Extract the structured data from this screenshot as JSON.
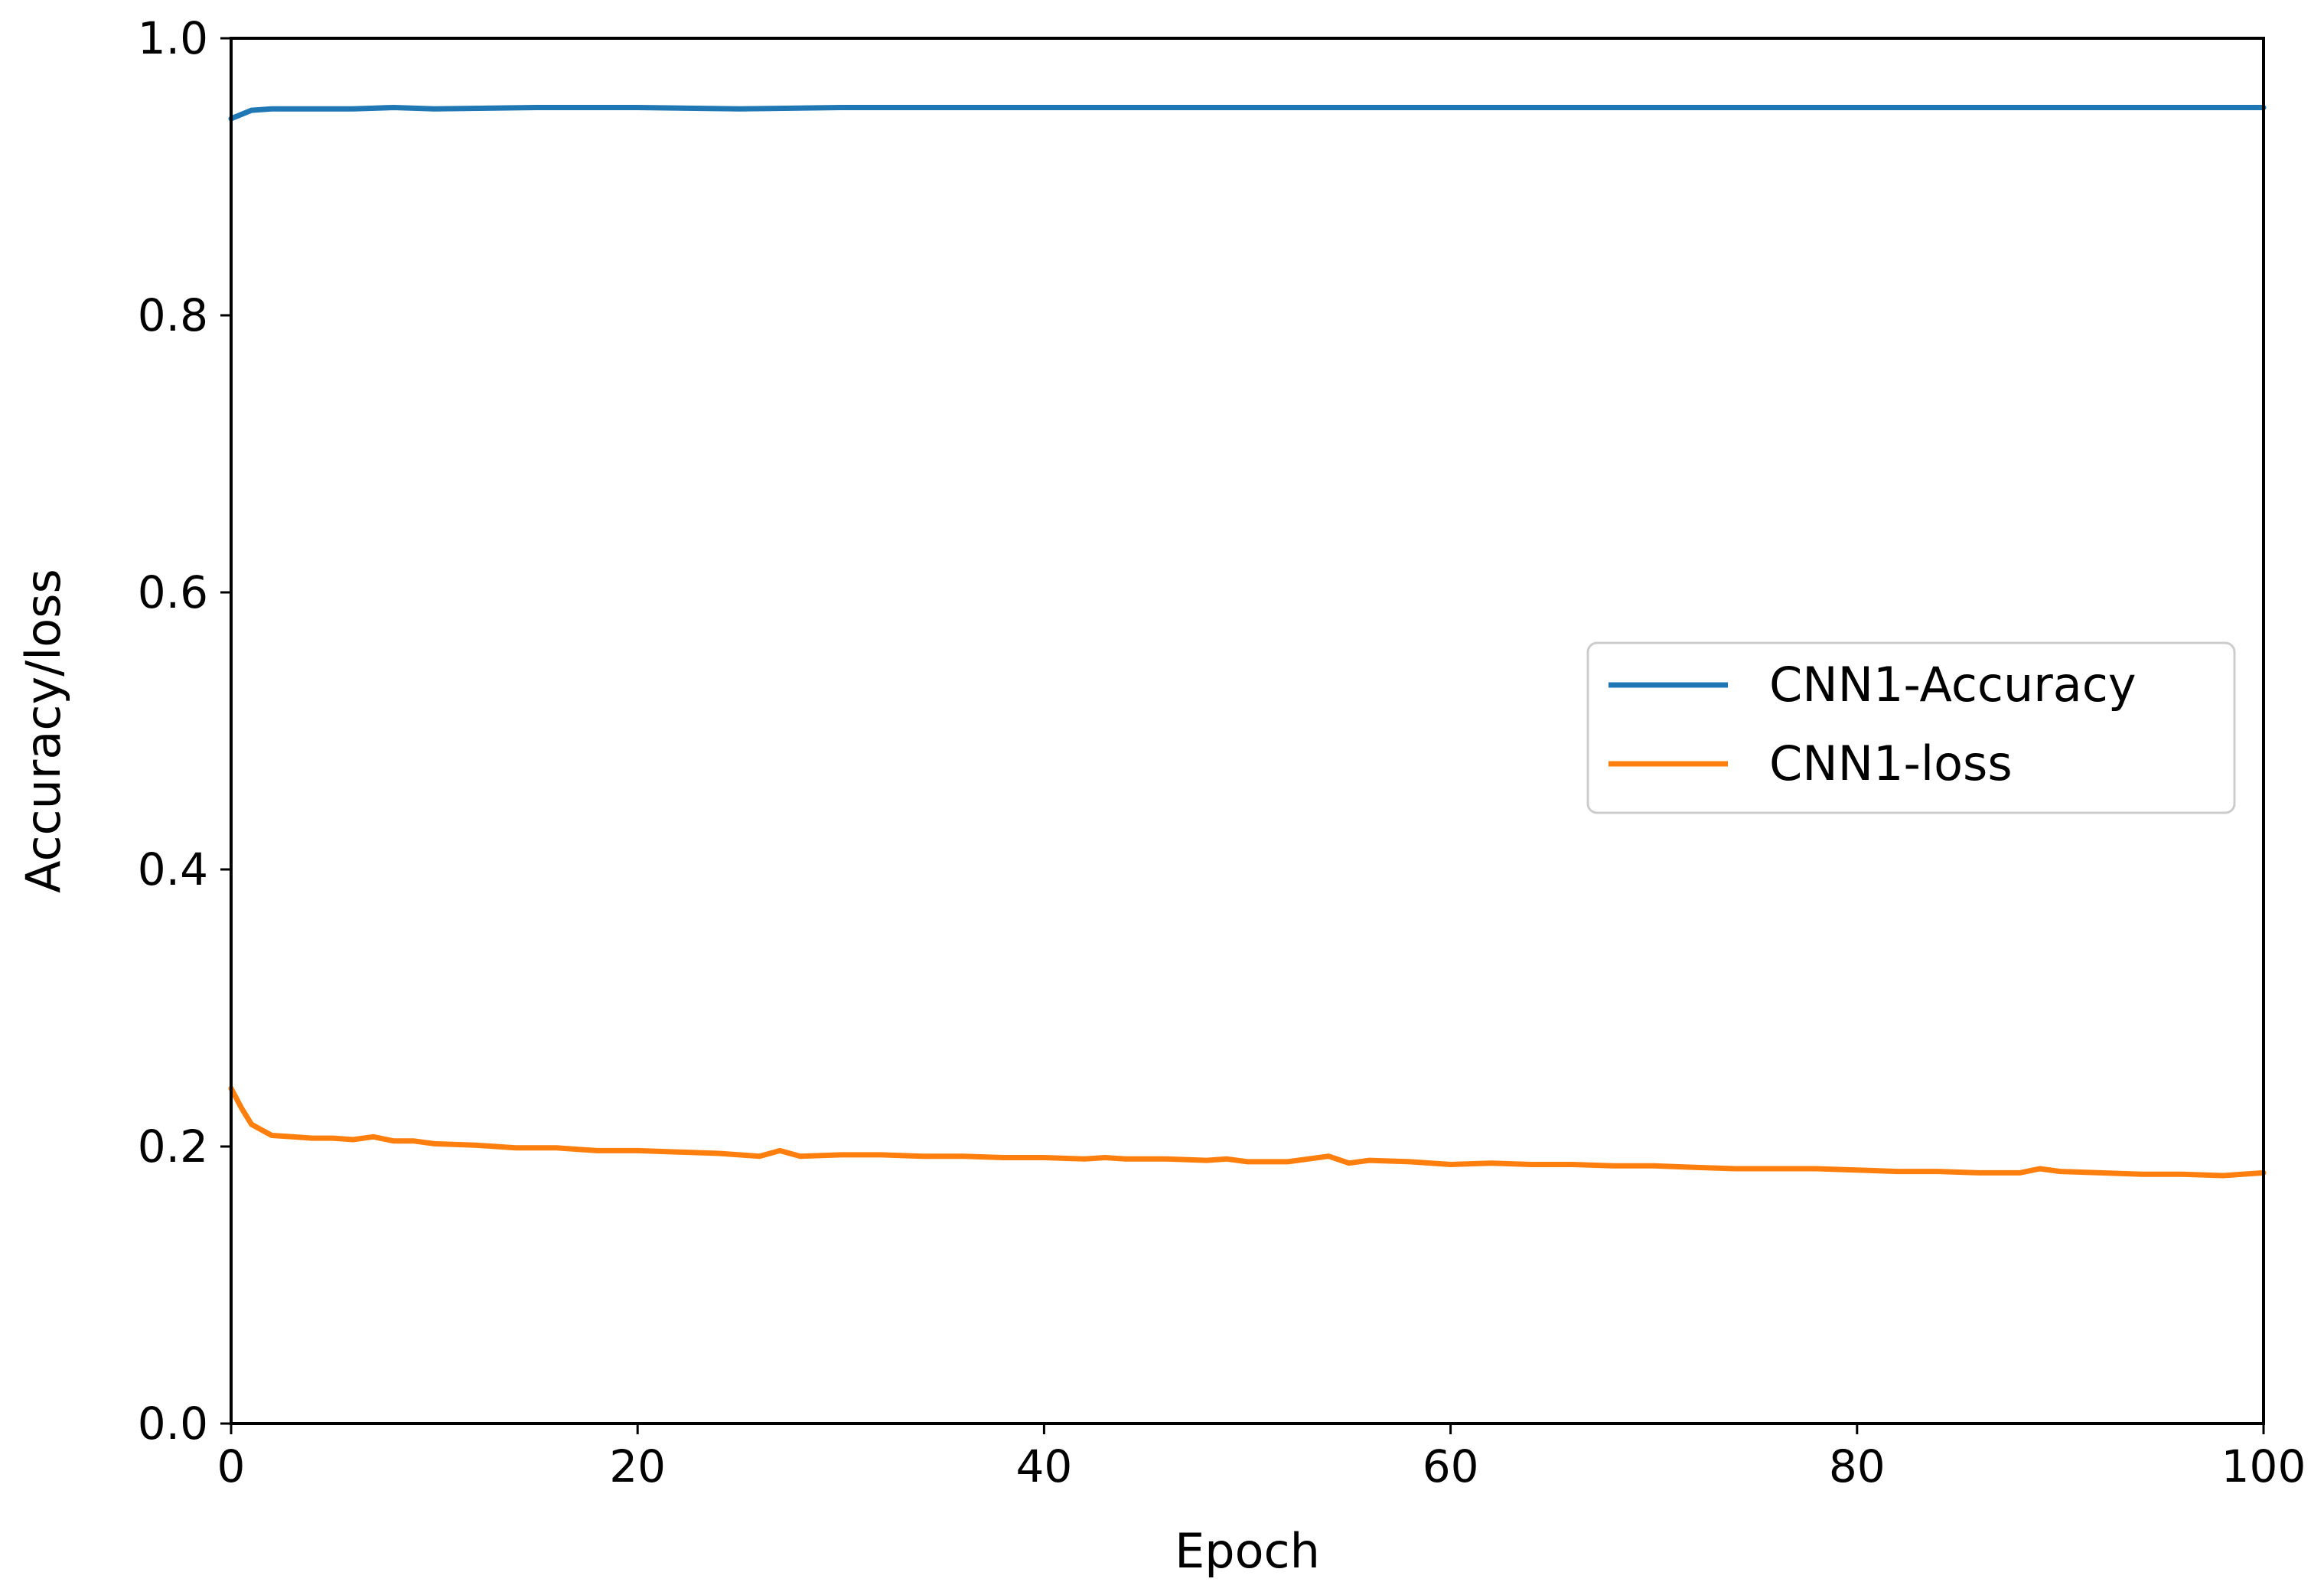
{
  "chart_data": {
    "type": "line",
    "title": "",
    "xlabel": "Epoch",
    "ylabel": "Accuracy/loss",
    "xlim": [
      0,
      100
    ],
    "ylim": [
      0.0,
      1.0
    ],
    "xticks": [
      "0",
      "20",
      "40",
      "60",
      "80",
      "100"
    ],
    "yticks": [
      "0.0",
      "0.2",
      "0.4",
      "0.6",
      "0.8",
      "1.0"
    ],
    "grid": false,
    "legend_position": "center-right",
    "series": [
      {
        "name": "CNN1-Accuracy",
        "color": "#1f77b4",
        "x": [
          0,
          1,
          2,
          4,
          6,
          8,
          10,
          15,
          20,
          25,
          30,
          35,
          40,
          45,
          50,
          55,
          60,
          65,
          70,
          75,
          80,
          85,
          90,
          95,
          100
        ],
        "y": [
          0.942,
          0.948,
          0.949,
          0.949,
          0.949,
          0.95,
          0.949,
          0.95,
          0.95,
          0.949,
          0.95,
          0.95,
          0.95,
          0.95,
          0.95,
          0.95,
          0.95,
          0.95,
          0.95,
          0.95,
          0.95,
          0.95,
          0.95,
          0.95,
          0.95
        ]
      },
      {
        "name": "CNN1-loss",
        "color": "#ff7f0e",
        "x": [
          0,
          0.5,
          1,
          1.5,
          2,
          3,
          4,
          5,
          6,
          7,
          8,
          9,
          10,
          12,
          14,
          16,
          18,
          20,
          22,
          24,
          26,
          27,
          28,
          30,
          32,
          34,
          36,
          38,
          40,
          42,
          43,
          44,
          46,
          48,
          49,
          50,
          52,
          54,
          55,
          56,
          58,
          60,
          62,
          64,
          66,
          68,
          70,
          72,
          74,
          76,
          78,
          80,
          82,
          84,
          86,
          88,
          89,
          90,
          92,
          94,
          96,
          98,
          100
        ],
        "y": [
          0.242,
          0.228,
          0.216,
          0.212,
          0.208,
          0.207,
          0.206,
          0.206,
          0.205,
          0.207,
          0.204,
          0.204,
          0.202,
          0.201,
          0.199,
          0.199,
          0.197,
          0.197,
          0.196,
          0.195,
          0.193,
          0.197,
          0.193,
          0.194,
          0.194,
          0.193,
          0.193,
          0.192,
          0.192,
          0.191,
          0.192,
          0.191,
          0.191,
          0.19,
          0.191,
          0.189,
          0.189,
          0.193,
          0.188,
          0.19,
          0.189,
          0.187,
          0.188,
          0.187,
          0.187,
          0.186,
          0.186,
          0.185,
          0.184,
          0.184,
          0.184,
          0.183,
          0.182,
          0.182,
          0.181,
          0.181,
          0.184,
          0.182,
          0.181,
          0.18,
          0.18,
          0.179,
          0.181
        ]
      }
    ]
  }
}
